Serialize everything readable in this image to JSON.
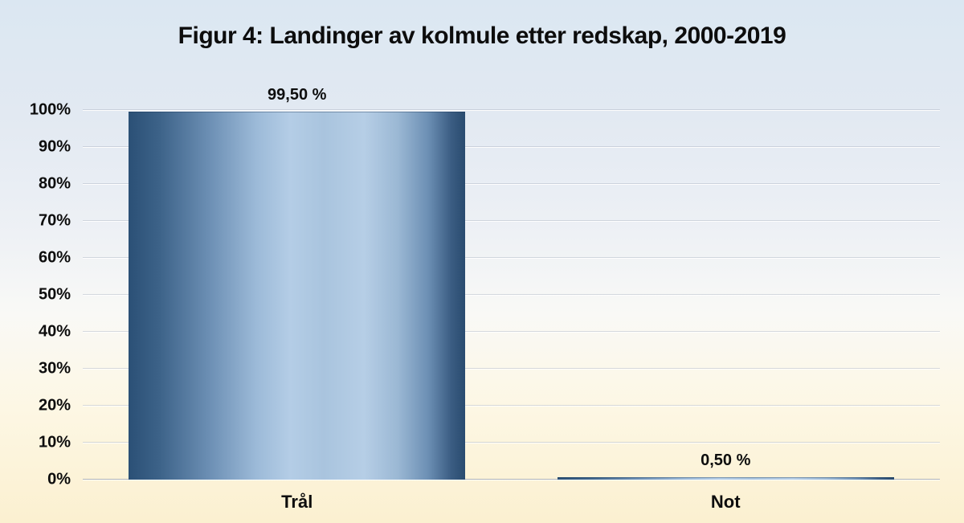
{
  "page": {
    "title": "Figur 4: Landinger av kolmule etter redskap, 2000-2019"
  },
  "chart_data": {
    "type": "bar",
    "title": "Figur 4: Landinger av kolmule etter redskap, 2000-2019",
    "categories": [
      "Trål",
      "Not"
    ],
    "values": [
      99.5,
      0.5
    ],
    "data_labels": [
      "99,50 %",
      "0,50 %"
    ],
    "xlabel": "",
    "ylabel": "",
    "ylim": [
      0,
      100
    ],
    "y_tick_step": 10,
    "y_tick_labels": [
      "0%",
      "10%",
      "20%",
      "30%",
      "40%",
      "50%",
      "60%",
      "70%",
      "80%",
      "90%",
      "100%"
    ],
    "grid": true,
    "legend": false,
    "colors": {
      "bar_dark": "#2b5076",
      "bar_light": "#b4cde6",
      "background_top": "#dbe7f2",
      "background_bottom": "#fbf0d0",
      "text": "#0d0d0d"
    }
  }
}
